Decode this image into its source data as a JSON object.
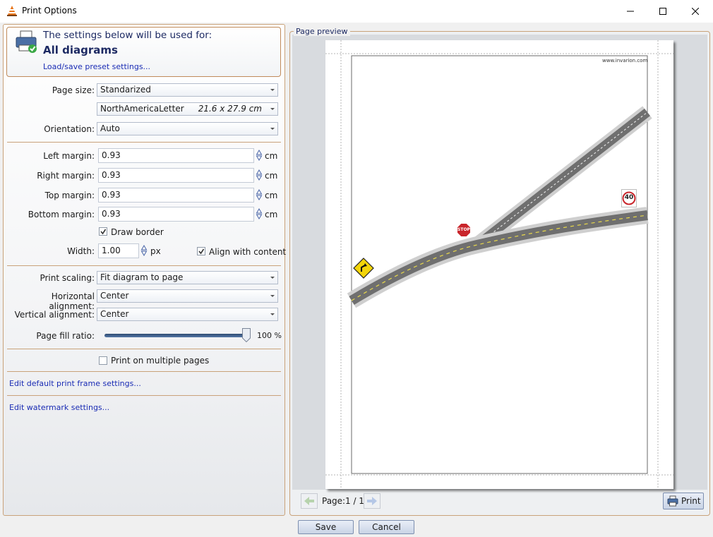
{
  "window": {
    "title": "Print Options",
    "minimize_glyph": "—",
    "maximize_glyph": "☐",
    "close_glyph": "✕"
  },
  "header": {
    "subtitle": "The settings below will be used for:",
    "scope": "All diagrams",
    "preset_link": "Load/save preset settings..."
  },
  "page_size": {
    "label": "Page size:",
    "value": "Standarized",
    "paper": "NorthAmericaLetter",
    "paper_dims": "21.6 x 27.9 cm"
  },
  "orientation": {
    "label": "Orientation:",
    "value": "Auto"
  },
  "margins": {
    "left": {
      "label": "Left margin:",
      "value": "0.93",
      "unit": "cm"
    },
    "right": {
      "label": "Right margin:",
      "value": "0.93",
      "unit": "cm"
    },
    "top": {
      "label": "Top margin:",
      "value": "0.93",
      "unit": "cm"
    },
    "bottom": {
      "label": "Bottom margin:",
      "value": "0.93",
      "unit": "cm"
    }
  },
  "border": {
    "draw_label": "Draw border",
    "draw_checked": true,
    "width_label": "Width:",
    "width_value": "1.00",
    "width_unit": "px",
    "align_label": "Align with content",
    "align_checked": true
  },
  "scaling": {
    "print_scaling_label": "Print scaling:",
    "print_scaling_value": "Fit diagram to page",
    "h_align_label": "Horizontal alignment:",
    "h_align_value": "Center",
    "v_align_label": "Vertical alignment:",
    "v_align_value": "Center",
    "fill_ratio_label": "Page fill ratio:",
    "fill_ratio_value": 100,
    "fill_ratio_text": "100 %"
  },
  "multi_page": {
    "label": "Print on multiple pages",
    "checked": false
  },
  "links": {
    "print_frame": "Edit default print frame settings...",
    "watermark": "Edit watermark settings..."
  },
  "preview": {
    "legend": "Page preview",
    "page_label": "Page:",
    "page_value": "1 / 1",
    "print_button": "Print",
    "watermark_url": "www.invarion.com",
    "stop_sign": "STOP",
    "speed_sign": "40"
  },
  "buttons": {
    "save": "Save",
    "cancel": "Cancel"
  },
  "colors": {
    "accent_border": "#c9a27a",
    "link": "#1a2cb4",
    "header_text": "#1d2a63"
  }
}
